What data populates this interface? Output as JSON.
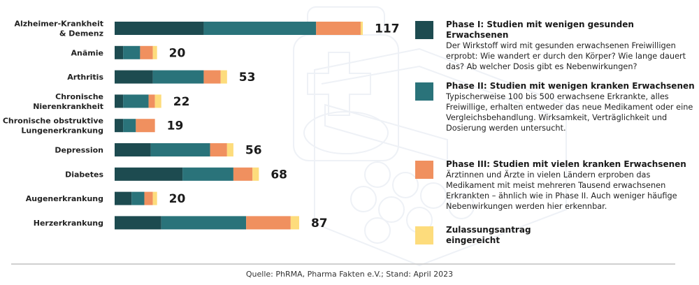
{
  "chart_data": {
    "type": "bar",
    "orientation": "horizontal",
    "stacked": true,
    "categories": [
      "Alzheimer-Krankheit & Demenz",
      "Anämie",
      "Arthritis",
      "Chronische Nierenkrankheit",
      "Chronische obstruktive Lungenerkrankung",
      "Depression",
      "Diabetes",
      "Augenerkrankung",
      "Herzerkrankung"
    ],
    "category_lines": [
      [
        "Alzheimer-Krankheit",
        "& Demenz"
      ],
      [
        "Anämie"
      ],
      [
        "Arthritis"
      ],
      [
        "Chronische",
        "Nierenkrankheit"
      ],
      [
        "Chronische obstruktive",
        "Lungenerkrankung"
      ],
      [
        "Depression"
      ],
      [
        "Diabetes"
      ],
      [
        "Augenerkrankung"
      ],
      [
        "Herzerkrankung"
      ]
    ],
    "totals": [
      117,
      20,
      53,
      22,
      19,
      56,
      68,
      20,
      87
    ],
    "series": [
      {
        "name": "Phase I",
        "color": "#1d4b50",
        "values": [
          42,
          4,
          18,
          4,
          4,
          17,
          32,
          8,
          22
        ]
      },
      {
        "name": "Phase II",
        "color": "#2a737a",
        "values": [
          53,
          8,
          24,
          12,
          6,
          28,
          24,
          6,
          40
        ]
      },
      {
        "name": "Phase III",
        "color": "#f0905f",
        "values": [
          21,
          6,
          8,
          3,
          9,
          8,
          9,
          4,
          21
        ]
      },
      {
        "name": "Zulassungsantrag eingereicht",
        "color": "#fddc7c",
        "values": [
          1,
          2,
          3,
          3,
          0,
          3,
          3,
          2,
          4
        ]
      }
    ],
    "xlim": [
      0,
      117
    ],
    "grid": false,
    "legend_position": "right"
  },
  "legend": [
    {
      "title": "Phase I: Studien mit wenigen gesunden Erwachsenen",
      "description": "Der Wirkstoff wird mit gesunden erwachsenen Freiwilligen erprobt: Wie wandert er durch den Körper? Wie lange dauert das? Ab welcher Dosis gibt es Nebenwirkungen?",
      "color": "#1d4b50"
    },
    {
      "title": "Phase II: Studien mit wenigen kranken Erwachsenen",
      "description": "Typischerweise 100 bis 500 erwachsene Erkrankte, alles Freiwillige, erhalten entweder das neue Medikament oder eine Vergleichsbehandlung. Wirksamkeit, Verträglichkeit und Dosierung werden untersucht.",
      "color": "#2a737a"
    },
    {
      "title": "Phase III: Studien mit vielen kranken Erwachsenen",
      "description": "Ärztinnen und Ärzte in vielen Ländern erproben das Medikament mit meist mehreren Tausend erwachsenen Erkrankten – ähnlich wie in Phase II. Auch weniger häufige Nebenwirkungen werden hier erkennbar.",
      "color": "#f0905f"
    },
    {
      "title": "Zulassungsantrag eingereicht",
      "title_lines": [
        "Zulassungsantrag",
        "eingereicht"
      ],
      "description": "",
      "color": "#fddc7c"
    }
  ],
  "footer": {
    "source": "Quelle: PhRMA, Pharma Fakten e.V.; Stand: April 2023"
  }
}
